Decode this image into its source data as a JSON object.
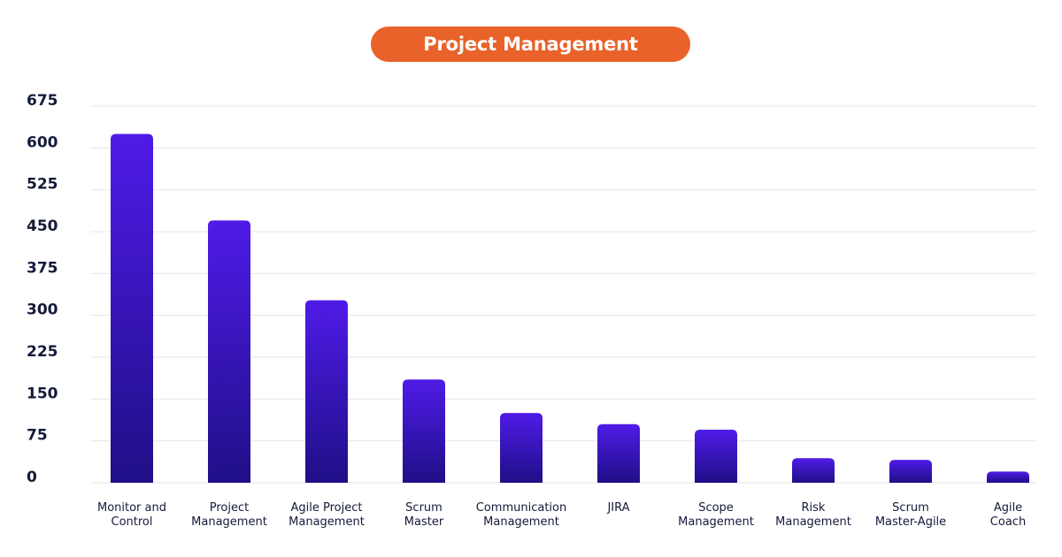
{
  "chart_data": {
    "type": "bar",
    "title": "Project Management",
    "xlabel": "",
    "ylabel": "",
    "categories": [
      [
        "Monitor and",
        "Control"
      ],
      [
        "Project",
        "Management"
      ],
      [
        "Agile Project",
        "Management"
      ],
      [
        "Scrum",
        "Master"
      ],
      [
        "Communication",
        "Management"
      ],
      [
        "JIRA"
      ],
      [
        "Scope",
        "Management"
      ],
      [
        "Risk",
        "Management"
      ],
      [
        "Scrum",
        "Master-Agile"
      ],
      [
        "Agile",
        "Coach"
      ]
    ],
    "values": [
      625,
      470,
      327,
      185,
      125,
      105,
      95,
      44,
      41,
      20
    ],
    "ylim": [
      0,
      675
    ],
    "yticks": [
      0,
      75,
      150,
      225,
      300,
      375,
      450,
      525,
      600,
      675
    ],
    "grid": true,
    "legend": "none"
  },
  "colors": {
    "title_bg": "#e8622a",
    "bar_top": "#4f1be8",
    "bar_bottom": "#1f0f86",
    "grid": "#e6e6ea",
    "text": "#141a3a"
  }
}
